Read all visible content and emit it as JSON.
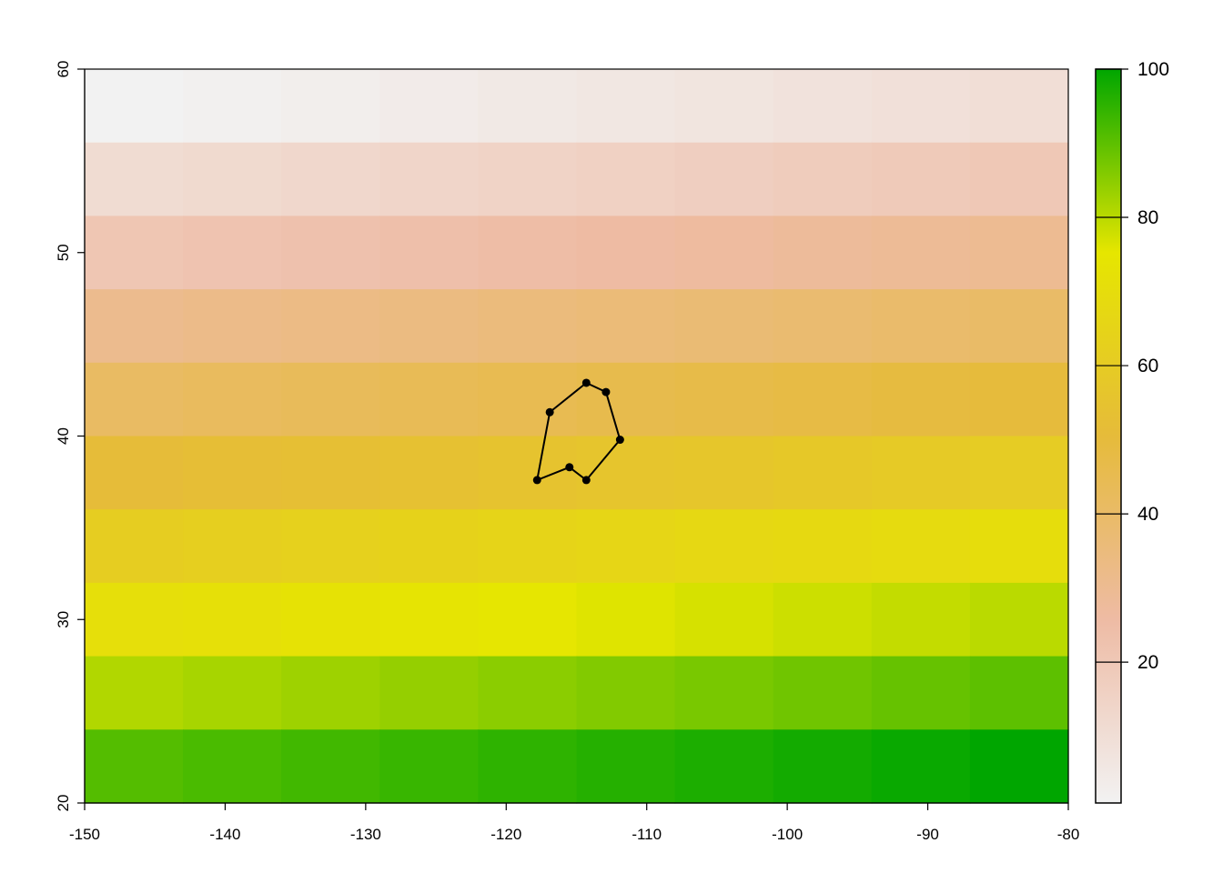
{
  "chart_data": {
    "type": "heatmap",
    "title": "",
    "xlabel": "",
    "ylabel": "",
    "xlim": [
      -150,
      -80
    ],
    "ylim": [
      20,
      60
    ],
    "x_ticks": [
      "-150",
      "-140",
      "-130",
      "-120",
      "-110",
      "-100",
      "-90",
      "-80"
    ],
    "y_ticks": [
      "20",
      "30",
      "40",
      "50",
      "60"
    ],
    "grid": false,
    "raster": {
      "ncols": 10,
      "nrows": 10,
      "values_top_to_bottom": [
        [
          1,
          2,
          3,
          4,
          5,
          6,
          7,
          8,
          9,
          10
        ],
        [
          11,
          12,
          13,
          14,
          15,
          16,
          17,
          18,
          19,
          20
        ],
        [
          21,
          22,
          23,
          24,
          25,
          26,
          27,
          28,
          29,
          30
        ],
        [
          31,
          32,
          33,
          34,
          35,
          36,
          37,
          38,
          39,
          40
        ],
        [
          41,
          42,
          43,
          44,
          45,
          46,
          47,
          48,
          49,
          50
        ],
        [
          51,
          52,
          53,
          54,
          55,
          56,
          57,
          58,
          59,
          60
        ],
        [
          61,
          62,
          63,
          64,
          65,
          66,
          67,
          68,
          69,
          70
        ],
        [
          71,
          72,
          73,
          74,
          75,
          76,
          77,
          78,
          79,
          80
        ],
        [
          81,
          82,
          83,
          84,
          85,
          86,
          87,
          88,
          89,
          90
        ],
        [
          91,
          92,
          93,
          94,
          95,
          96,
          97,
          98,
          99,
          100
        ]
      ]
    },
    "colorbar": {
      "range": [
        1,
        100
      ],
      "ticks": [
        "20",
        "40",
        "60",
        "80",
        "100"
      ],
      "palette": "terrain (reversed)",
      "colors": [
        "#f2f2f2",
        "#eebba4",
        "#e6bb3a",
        "#e6e600",
        "#00a600"
      ],
      "placement": "right"
    },
    "polygon": {
      "color": "#000000",
      "vertices": [
        [
          -117.8,
          37.6
        ],
        [
          -116.9,
          41.3
        ],
        [
          -114.3,
          42.9
        ],
        [
          -112.9,
          42.4
        ],
        [
          -111.9,
          39.8
        ],
        [
          -114.3,
          37.6
        ],
        [
          -115.5,
          38.3
        ]
      ]
    }
  }
}
